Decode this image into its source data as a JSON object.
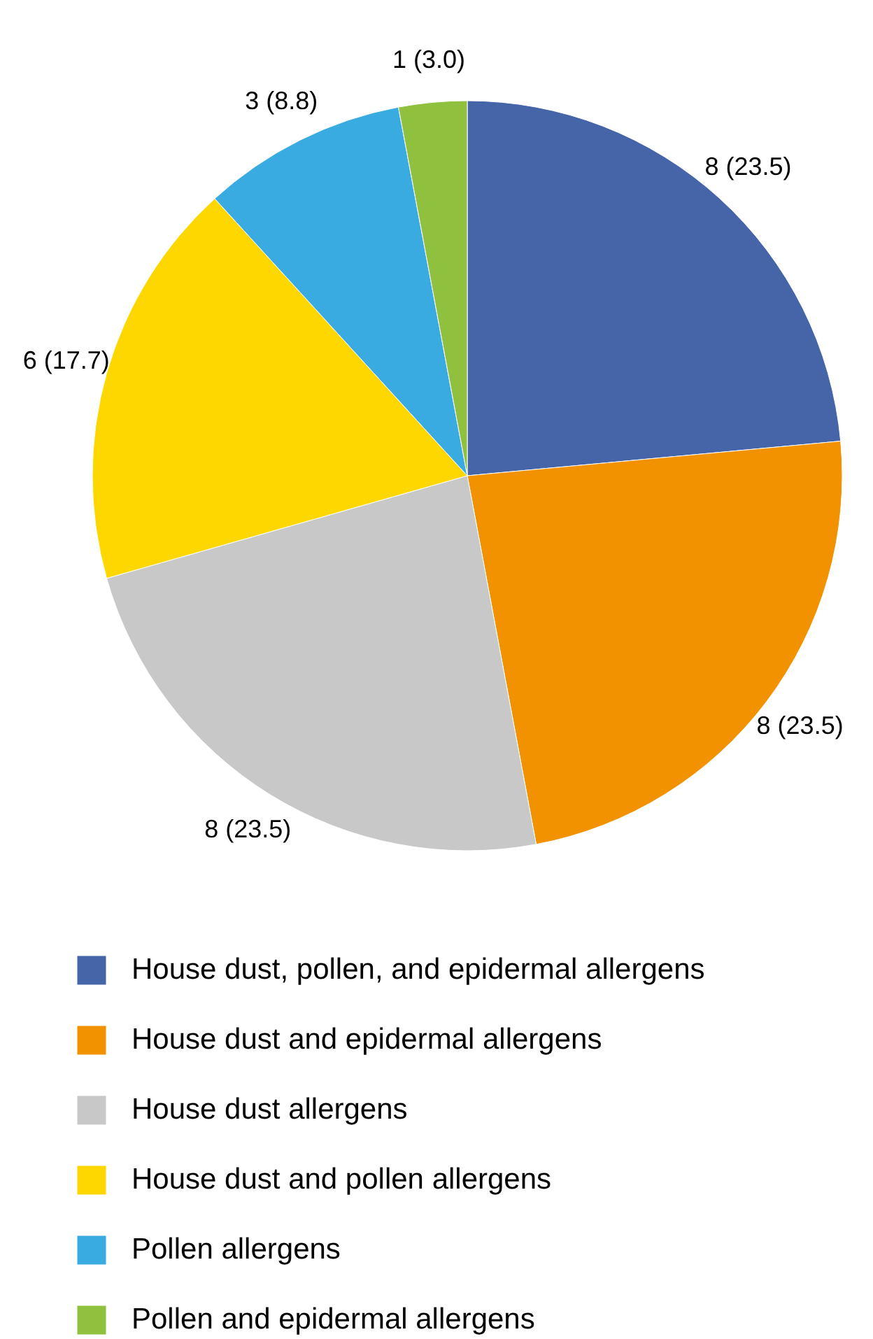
{
  "chart_data": {
    "type": "pie",
    "categories": [
      "House dust, pollen, and epidermal allergens",
      "House dust and epidermal allergens",
      "House dust allergens",
      "House dust and pollen allergens",
      "Pollen allergens",
      "Pollen and epidermal allergens"
    ],
    "values": [
      8,
      8,
      8,
      6,
      3,
      1
    ],
    "value_labels": [
      "8 (23.5)",
      "8 (23.5)",
      "8 (23.5)",
      "6 (17.7)",
      "3 (8.8)",
      "1 (3.0)"
    ],
    "colors": [
      "#4665a8",
      "#f39200",
      "#c8c8c8",
      "#ffd700",
      "#3aabe1",
      "#8fc13f"
    ],
    "legend": "bottom"
  }
}
